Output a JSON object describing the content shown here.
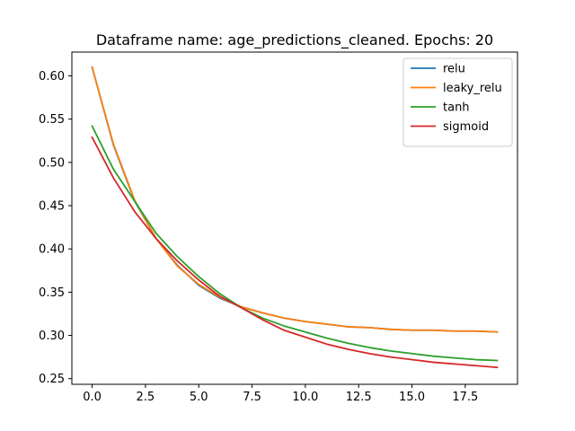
{
  "chart_data": {
    "type": "line",
    "title": "Dataframe name: age_predictions_cleaned. Epochs: 20",
    "xlabel": "",
    "ylabel": "",
    "xlim": [
      -0.95,
      19.95
    ],
    "ylim": [
      0.2435,
      0.6275
    ],
    "x_ticks": [
      0,
      2.5,
      5,
      7.5,
      10,
      12.5,
      15,
      17.5
    ],
    "x_tick_labels": [
      "0.0",
      "2.5",
      "5.0",
      "7.5",
      "10.0",
      "12.5",
      "15.0",
      "17.5"
    ],
    "y_ticks": [
      0.25,
      0.3,
      0.35,
      0.4,
      0.45,
      0.5,
      0.55,
      0.6
    ],
    "y_tick_labels": [
      "0.25",
      "0.30",
      "0.35",
      "0.40",
      "0.45",
      "0.50",
      "0.55",
      "0.60"
    ],
    "grid": false,
    "legend_position": "top-right",
    "x": [
      0,
      1,
      2,
      3,
      4,
      5,
      6,
      7,
      8,
      9,
      10,
      11,
      12,
      13,
      14,
      15,
      16,
      17,
      18,
      19
    ],
    "series": [
      {
        "name": "relu",
        "color": "#1f77b4",
        "values": [
          0.61,
          0.52,
          0.455,
          0.412,
          0.381,
          0.358,
          0.343,
          0.333,
          0.326,
          0.32,
          0.316,
          0.313,
          0.31,
          0.309,
          0.307,
          0.306,
          0.306,
          0.305,
          0.305,
          0.304
        ]
      },
      {
        "name": "leaky_relu",
        "color": "#ff7f0e",
        "values": [
          0.61,
          0.521,
          0.456,
          0.412,
          0.38,
          0.359,
          0.344,
          0.333,
          0.326,
          0.32,
          0.316,
          0.313,
          0.31,
          0.309,
          0.307,
          0.306,
          0.306,
          0.305,
          0.305,
          0.304
        ]
      },
      {
        "name": "tanh",
        "color": "#2ca02c",
        "values": [
          0.542,
          0.492,
          0.455,
          0.418,
          0.391,
          0.368,
          0.348,
          0.332,
          0.32,
          0.311,
          0.304,
          0.297,
          0.291,
          0.286,
          0.282,
          0.279,
          0.276,
          0.274,
          0.272,
          0.271
        ]
      },
      {
        "name": "sigmoid",
        "color": "#d62728",
        "values": [
          0.529,
          0.482,
          0.443,
          0.412,
          0.386,
          0.364,
          0.345,
          0.332,
          0.318,
          0.306,
          0.298,
          0.29,
          0.284,
          0.279,
          0.275,
          0.272,
          0.269,
          0.267,
          0.265,
          0.263
        ]
      }
    ]
  }
}
